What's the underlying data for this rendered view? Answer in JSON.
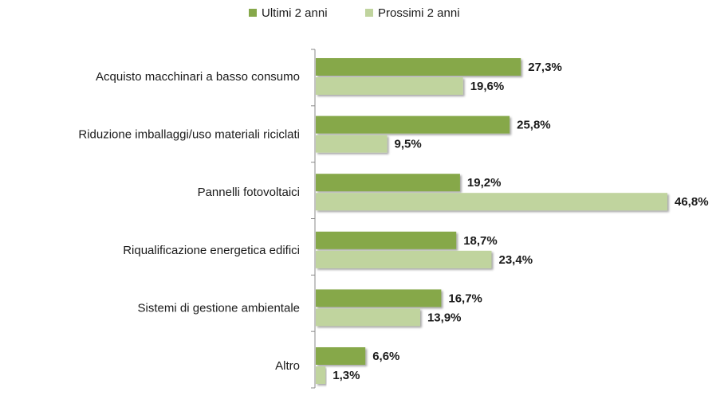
{
  "chart_data": {
    "type": "bar",
    "orientation": "horizontal",
    "categories": [
      "Acquisto macchinari a basso consumo",
      "Riduzione imballaggi/uso materiali riciclati",
      "Pannelli fotovoltaici",
      "Riqualificazione energetica  edifici",
      "Sistemi di gestione ambientale",
      "Altro"
    ],
    "series": [
      {
        "name": "Ultimi 2 anni",
        "color": "#86a84a",
        "values": [
          27.3,
          25.8,
          19.2,
          18.7,
          16.7,
          6.6
        ],
        "labels": [
          "27,3%",
          "25,8%",
          "19,2%",
          "18,7%",
          "16,7%",
          "6,6%"
        ]
      },
      {
        "name": "Prossimi 2 anni",
        "color": "#c0d49e",
        "values": [
          19.6,
          9.5,
          46.8,
          23.4,
          13.9,
          1.3
        ],
        "labels": [
          "19,6%",
          "9,5%",
          "46,8%",
          "23,4%",
          "13,9%",
          "1,3%"
        ]
      }
    ],
    "xlim": [
      0,
      50
    ],
    "grid": false,
    "legend_position": "top"
  }
}
